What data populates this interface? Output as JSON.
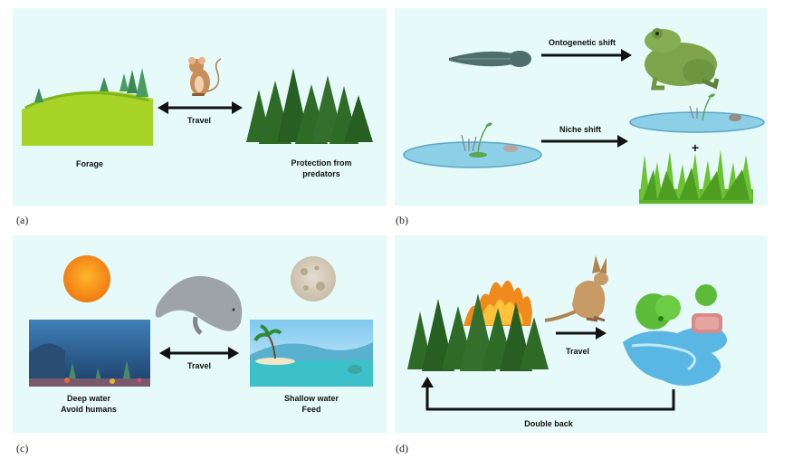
{
  "panel_a": {
    "caption": "(a)",
    "travel": "Travel",
    "left_label": "Forage",
    "right_label_1": "Protection from",
    "right_label_2": "predators"
  },
  "panel_b": {
    "caption": "(b)",
    "top_arrow": "Ontogenetic shift",
    "bottom_arrow": "Niche shift",
    "plus": "+"
  },
  "panel_c": {
    "caption": "(c)",
    "travel": "Travel",
    "left_label_1": "Deep water",
    "left_label_2": "Avoid humans",
    "right_label_1": "Shallow water",
    "right_label_2": "Feed"
  },
  "panel_d": {
    "caption": "(d)",
    "travel": "Travel",
    "bottom_label": "Double back"
  },
  "colors": {
    "panel_bg": "#e6fafa",
    "grass": "#a8d42a",
    "forest": "#2e6b27",
    "water": "#8ecfe8"
  }
}
